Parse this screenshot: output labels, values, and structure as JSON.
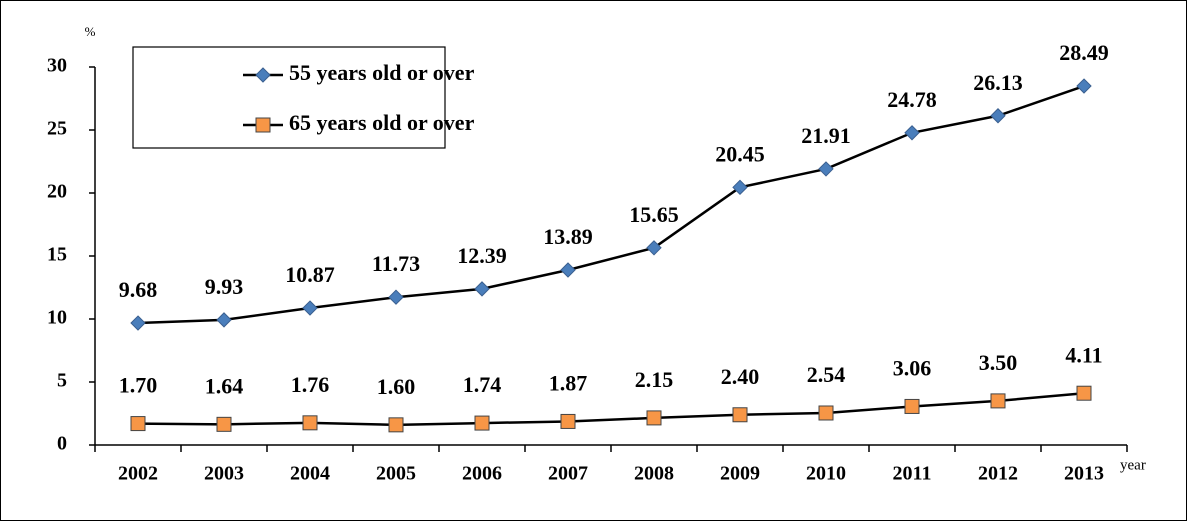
{
  "chart_data": {
    "type": "line",
    "y_label": "%",
    "x_label": "year",
    "categories": [
      "2002",
      "2003",
      "2004",
      "2005",
      "2006",
      "2007",
      "2008",
      "2009",
      "2010",
      "2011",
      "2012",
      "2013"
    ],
    "series": [
      {
        "name": "55 years old or over",
        "color": "#4a7ebb",
        "marker": "diamond",
        "values": [
          9.68,
          9.93,
          10.87,
          11.73,
          12.39,
          13.89,
          15.65,
          20.45,
          21.91,
          24.78,
          26.13,
          28.49
        ]
      },
      {
        "name": "65 years old or over",
        "color": "#f79646",
        "marker": "square",
        "values": [
          1.7,
          1.64,
          1.76,
          1.6,
          1.74,
          1.87,
          2.15,
          2.4,
          2.54,
          3.06,
          3.5,
          4.11
        ],
        "value_labels": [
          "1.70",
          "1.64",
          "1.76",
          "1.60",
          "1.74",
          "1.87",
          "2.15",
          "2.40",
          "2.54",
          "3.06",
          "3.50",
          "4.11"
        ]
      }
    ],
    "ylim": [
      0,
      30
    ],
    "yticks": [
      0,
      5,
      10,
      15,
      20,
      25,
      30
    ],
    "grid": false,
    "legend": "upper left"
  }
}
